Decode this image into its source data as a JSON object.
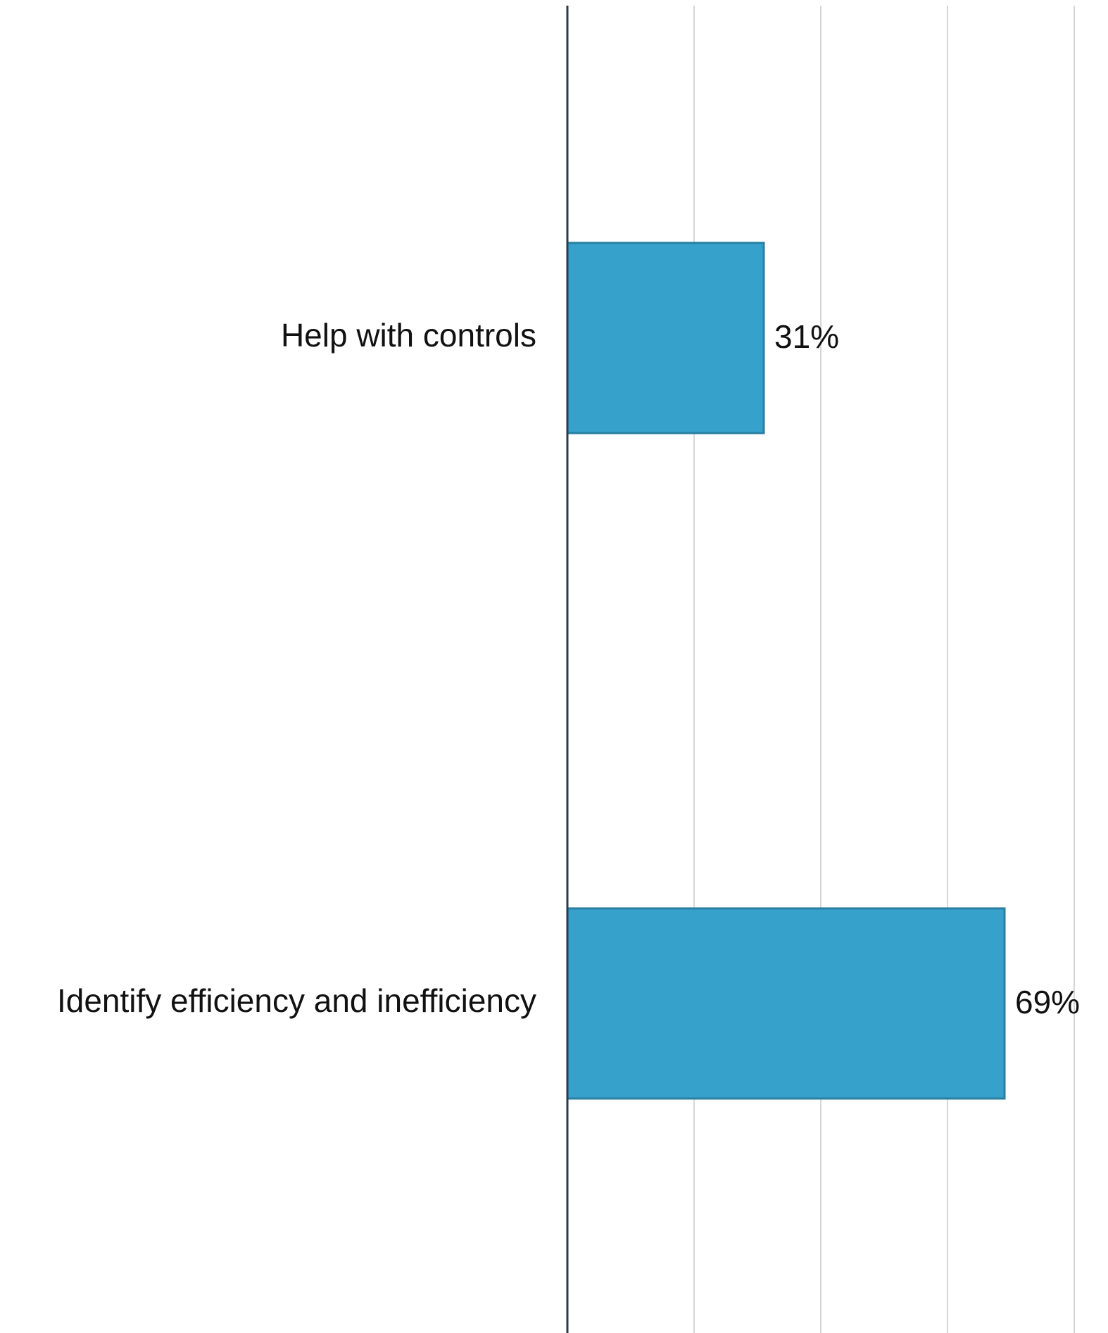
{
  "chart_data": {
    "type": "bar",
    "orientation": "horizontal",
    "categories": [
      "Help with controls",
      "Identify efficiency and inefficiency"
    ],
    "values": [
      31,
      69
    ],
    "value_labels": [
      "31%",
      "69%"
    ],
    "title": "",
    "xlabel": "",
    "ylabel": "",
    "xlim": [
      0,
      80
    ],
    "grid": true,
    "grid_ticks": [
      20,
      40,
      60,
      80
    ],
    "colors": {
      "bar_fill": "#36a2cb",
      "bar_stroke": "#2a7fa3",
      "axis": "#2b3a4a",
      "grid": "#d6d6d6"
    }
  }
}
